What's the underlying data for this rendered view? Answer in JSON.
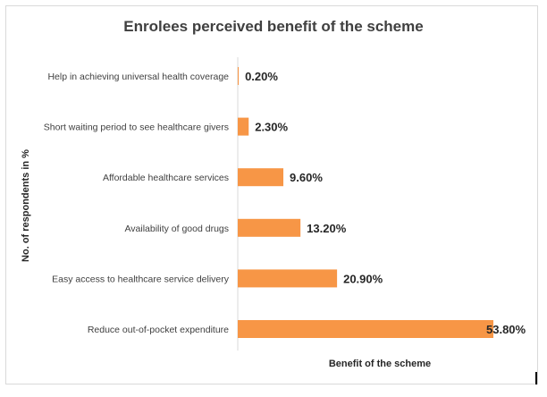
{
  "chart_data": {
    "type": "bar",
    "orientation": "horizontal",
    "title": "Enrolees perceived benefit of the scheme",
    "xlabel": "Benefit of the scheme",
    "ylabel": "No. of respondents in %",
    "categories": [
      "Help in achieving universal health coverage",
      "Short waiting period to see healthcare givers",
      "Affordable healthcare services",
      "Availability of good drugs",
      "Easy access to healthcare service delivery",
      "Reduce out-of-pocket expenditure"
    ],
    "values": [
      0.2,
      2.3,
      9.6,
      13.2,
      20.9,
      53.8
    ],
    "value_labels": [
      "0.20%",
      "2.30%",
      "9.60%",
      "13.20%",
      "20.90%",
      "53.80%"
    ],
    "xlim": [
      0,
      53.8
    ],
    "grid": false,
    "legend": "none",
    "bar_color": "#F79646"
  }
}
